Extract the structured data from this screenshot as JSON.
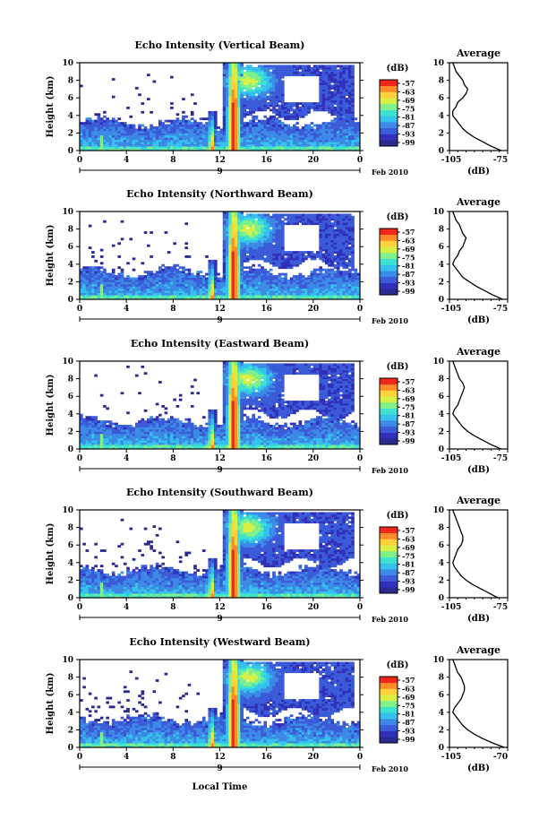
{
  "colorbar": {
    "unit_label": "(dB)",
    "ticks": [
      "-57",
      "-63",
      "-69",
      "-75",
      "-81",
      "-87",
      "-93",
      "-99"
    ],
    "colors": [
      "#2b2b8f",
      "#3030b8",
      "#3b5bd8",
      "#3c8ae6",
      "#36c0ee",
      "#3ee3d0",
      "#7ff08a",
      "#d8f046",
      "#ffd23a",
      "#ff8a2a",
      "#f0281c"
    ]
  },
  "x_axis": {
    "ticks": [
      "0",
      "4",
      "8",
      "12",
      "16",
      "20",
      "0"
    ],
    "date_day": "9",
    "date_label": "Feb 2010",
    "label": "Local Time"
  },
  "chart_data": [
    {
      "type": "heatmap",
      "title": "Echo Intensity (Vertical Beam)",
      "ylabel": "Height (km)",
      "xlim": [
        0,
        24
      ],
      "ylim": [
        0,
        10
      ],
      "x_ticks": [
        0,
        4,
        8,
        12,
        16,
        20,
        24
      ],
      "y_ticks": [
        0,
        2,
        4,
        6,
        8,
        10
      ],
      "value_range_db": [
        -99,
        -57
      ],
      "average_profile": {
        "title": "Average",
        "xlabel": "(dB)",
        "x_tick_labels": [
          "-105",
          "-75"
        ],
        "xlim": [
          -105,
          -70
        ],
        "ylim": [
          0,
          10
        ],
        "height_km": [
          0,
          0.5,
          1,
          1.5,
          2,
          2.5,
          3,
          3.5,
          4,
          4.5,
          5,
          5.5,
          6,
          6.5,
          7,
          7.5,
          8,
          8.5,
          9,
          9.5,
          10
        ],
        "db": [
          -74,
          -80,
          -85,
          -90,
          -94,
          -97,
          -99,
          -101,
          -103,
          -103,
          -101,
          -100,
          -97,
          -95,
          -94,
          -96,
          -97,
          -99,
          -101,
          -102,
          -103
        ]
      }
    },
    {
      "type": "heatmap",
      "title": "Echo Intensity (Northward Beam)",
      "ylabel": "Height (km)",
      "xlim": [
        0,
        24
      ],
      "ylim": [
        0,
        10
      ],
      "x_ticks": [
        0,
        4,
        8,
        12,
        16,
        20,
        24
      ],
      "y_ticks": [
        0,
        2,
        4,
        6,
        8,
        10
      ],
      "value_range_db": [
        -99,
        -57
      ],
      "average_profile": {
        "title": "Average",
        "xlabel": "(dB)",
        "x_tick_labels": [
          "-105",
          "-75"
        ],
        "xlim": [
          -105,
          -70
        ],
        "ylim": [
          0,
          10
        ],
        "height_km": [
          0,
          0.5,
          1,
          1.5,
          2,
          2.5,
          3,
          3.5,
          4,
          4.5,
          5,
          5.5,
          6,
          6.5,
          7,
          7.5,
          8,
          8.5,
          9,
          9.5,
          10
        ],
        "db": [
          -73,
          -79,
          -84,
          -89,
          -93,
          -97,
          -99,
          -101,
          -103,
          -102,
          -100,
          -99,
          -97,
          -96,
          -95,
          -97,
          -98,
          -99,
          -101,
          -102,
          -103
        ]
      }
    },
    {
      "type": "heatmap",
      "title": "Echo Intensity (Eastward Beam)",
      "ylabel": "Height (km)",
      "xlim": [
        0,
        24
      ],
      "ylim": [
        0,
        10
      ],
      "x_ticks": [
        0,
        4,
        8,
        12,
        16,
        20,
        24
      ],
      "y_ticks": [
        0,
        2,
        4,
        6,
        8,
        10
      ],
      "value_range_db": [
        -99,
        -57
      ],
      "average_profile": {
        "title": "Average",
        "xlabel": "(dB)",
        "x_tick_labels": [
          "-105",
          "-75"
        ],
        "xlim": [
          -105,
          -70
        ],
        "ylim": [
          0,
          10
        ],
        "height_km": [
          0,
          0.5,
          1,
          1.5,
          2,
          2.5,
          3,
          3.5,
          4,
          4.5,
          5,
          5.5,
          6,
          6.5,
          7,
          7.5,
          8,
          8.5,
          9,
          9.5,
          10
        ],
        "db": [
          -74,
          -80,
          -85,
          -90,
          -94,
          -97,
          -99,
          -101,
          -103,
          -102,
          -100,
          -99,
          -98,
          -97,
          -96,
          -97,
          -99,
          -100,
          -101,
          -102,
          -103
        ]
      }
    },
    {
      "type": "heatmap",
      "title": "Echo Intensity (Southward Beam)",
      "ylabel": "Height (km)",
      "xlim": [
        0,
        24
      ],
      "ylim": [
        0,
        10
      ],
      "x_ticks": [
        0,
        4,
        8,
        12,
        16,
        20,
        24
      ],
      "y_ticks": [
        0,
        2,
        4,
        6,
        8,
        10
      ],
      "value_range_db": [
        -99,
        -57
      ],
      "average_profile": {
        "title": "Average",
        "xlabel": "(dB)",
        "x_tick_labels": [
          "-105",
          "-75"
        ],
        "xlim": [
          -105,
          -70
        ],
        "ylim": [
          0,
          10
        ],
        "height_km": [
          0,
          0.5,
          1,
          1.5,
          2,
          2.5,
          3,
          3.5,
          4,
          4.5,
          5,
          5.5,
          6,
          6.5,
          7,
          7.5,
          8,
          8.5,
          9,
          9.5,
          10
        ],
        "db": [
          -76,
          -81,
          -86,
          -91,
          -95,
          -98,
          -100,
          -102,
          -103,
          -102,
          -101,
          -100,
          -98,
          -97,
          -97,
          -98,
          -99,
          -100,
          -101,
          -102,
          -103
        ]
      }
    },
    {
      "type": "heatmap",
      "title": "Echo Intensity (Westward Beam)",
      "ylabel": "Height (km)",
      "xlim": [
        0,
        24
      ],
      "ylim": [
        0,
        10
      ],
      "x_ticks": [
        0,
        4,
        8,
        12,
        16,
        20,
        24
      ],
      "y_ticks": [
        0,
        2,
        4,
        6,
        8,
        10
      ],
      "value_range_db": [
        -99,
        -57
      ],
      "average_profile": {
        "title": "Average",
        "xlabel": "(dB)",
        "x_tick_labels": [
          "-105",
          "-70"
        ],
        "xlim": [
          -105,
          -70
        ],
        "ylim": [
          0,
          10
        ],
        "height_km": [
          0,
          0.5,
          1,
          1.5,
          2,
          2.5,
          3,
          3.5,
          4,
          4.5,
          5,
          5.5,
          6,
          6.5,
          7,
          7.5,
          8,
          8.5,
          9,
          9.5,
          10
        ],
        "db": [
          -72,
          -79,
          -85,
          -90,
          -94,
          -97,
          -99,
          -101,
          -103,
          -102,
          -100,
          -98,
          -97,
          -96,
          -96,
          -97,
          -98,
          -100,
          -101,
          -102,
          -103
        ]
      }
    }
  ]
}
